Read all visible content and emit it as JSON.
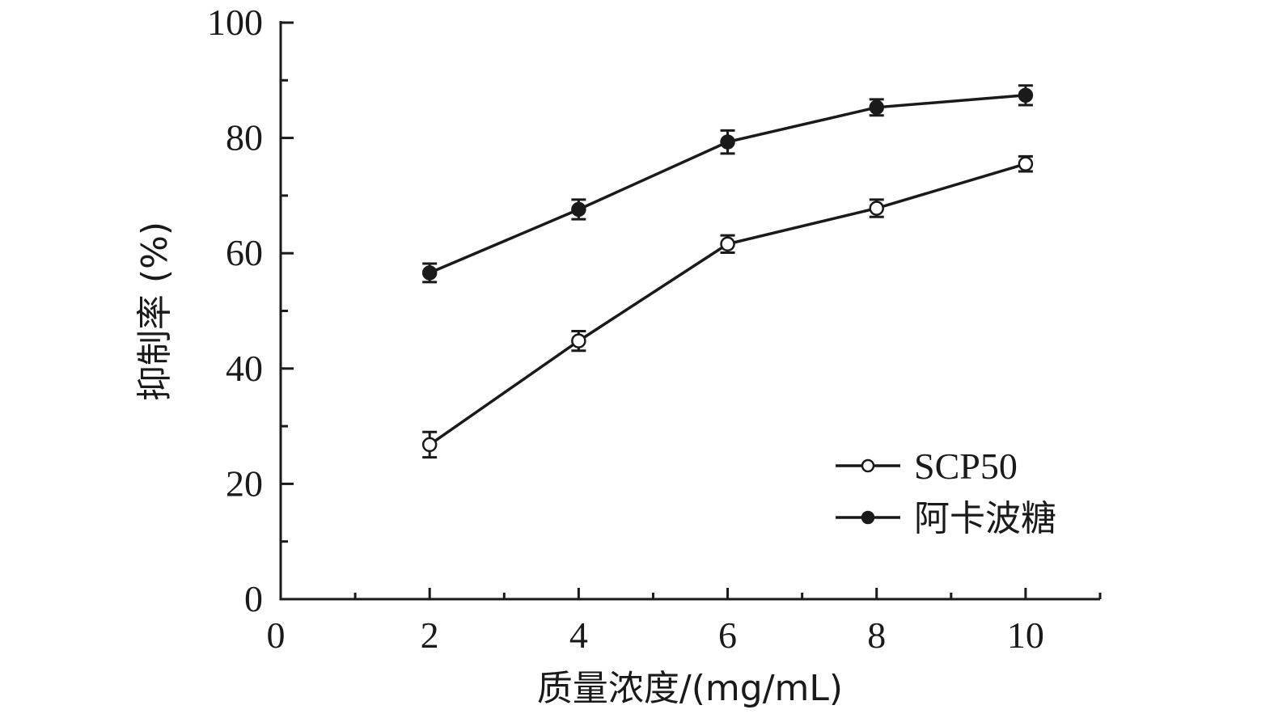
{
  "chart_data": {
    "type": "line",
    "xlabel": "质量浓度/(mg/mL)",
    "ylabel": "抑制率 (%)",
    "xlim": [
      0,
      11
    ],
    "ylim": [
      0,
      100
    ],
    "x_ticks": [
      "0",
      "2",
      "4",
      "6",
      "8",
      "10"
    ],
    "y_ticks": [
      "0",
      "20",
      "40",
      "60",
      "80",
      "100"
    ],
    "legend_position": "bottom-right",
    "series": [
      {
        "name": "SCP50",
        "marker": "open-circle",
        "x": [
          2,
          4,
          6,
          8,
          10
        ],
        "y": [
          26.8,
          44.8,
          61.6,
          67.8,
          75.5
        ],
        "error": [
          2.2,
          1.7,
          1.5,
          1.5,
          1.3
        ]
      },
      {
        "name": "阿卡波糖",
        "marker": "filled-circle",
        "x": [
          2,
          4,
          6,
          8,
          10
        ],
        "y": [
          56.6,
          67.6,
          79.3,
          85.3,
          87.4
        ],
        "error": [
          1.6,
          1.7,
          2.0,
          1.4,
          1.7
        ]
      }
    ]
  }
}
